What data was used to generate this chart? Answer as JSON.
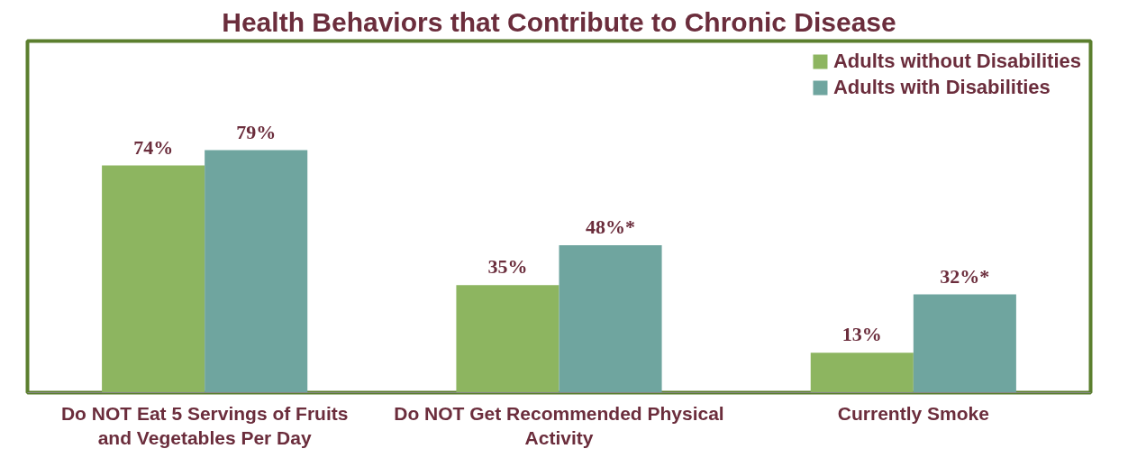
{
  "chart_data": {
    "type": "bar",
    "title": "Health Behaviors that Contribute to Chronic Disease",
    "categories": [
      "Do NOT Eat 5 Servings of Fruits and Vegetables Per Day",
      "Do NOT Get Recommended Physical Activity",
      "Currently Smoke"
    ],
    "series": [
      {
        "name": "Adults without Disabilities",
        "color": "#8db560",
        "values": [
          74,
          35,
          13
        ],
        "value_labels": [
          "74%",
          "35%",
          "13%"
        ]
      },
      {
        "name": "Adults with Disabilities",
        "color": "#6fa59f",
        "values": [
          79,
          48,
          32
        ],
        "value_labels": [
          "79%",
          "48%*",
          "32%*"
        ]
      }
    ],
    "legend": "top right",
    "grid": false
  }
}
